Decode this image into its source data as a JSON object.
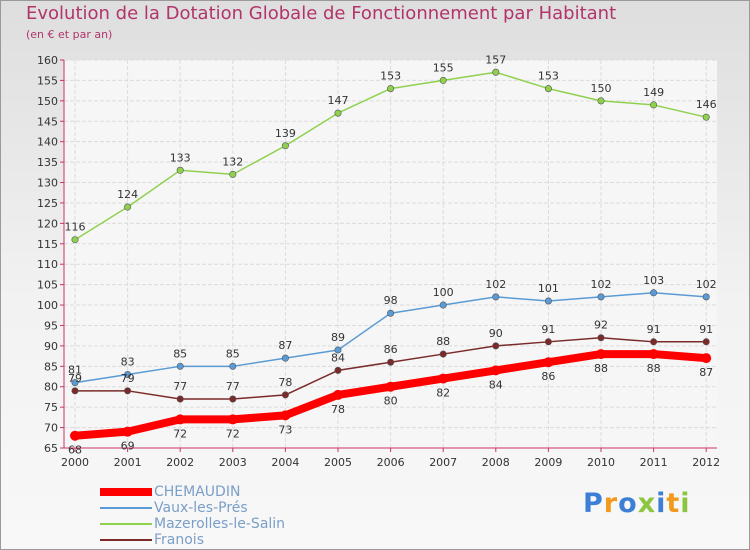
{
  "chart_data": {
    "type": "line",
    "title": "Evolution de la Dotation Globale de Fonctionnement par Habitant",
    "subtitle": "(en € et par an)",
    "categories": [
      "2000",
      "2001",
      "2002",
      "2003",
      "2004",
      "2005",
      "2006",
      "2007",
      "2008",
      "2009",
      "2010",
      "2011",
      "2012"
    ],
    "ylim": [
      65,
      160
    ],
    "ytick_step": 5,
    "grid": true,
    "legend_position": "bottom-left",
    "series": [
      {
        "name": "CHEMAUDIN",
        "color": "#ff0000",
        "values": [
          68,
          69,
          72,
          72,
          73,
          78,
          80,
          82,
          84,
          86,
          88,
          88,
          87
        ]
      },
      {
        "name": "Vaux-les-Prés",
        "color": "#5b9bd5",
        "values": [
          81,
          83,
          85,
          85,
          87,
          89,
          98,
          100,
          102,
          101,
          102,
          103,
          102
        ]
      },
      {
        "name": "Mazerolles-le-Salin",
        "color": "#8fd14f",
        "values": [
          116,
          124,
          133,
          132,
          139,
          147,
          153,
          155,
          157,
          153,
          150,
          149,
          146
        ]
      },
      {
        "name": "Franois",
        "color": "#7b2a2a",
        "values": [
          79,
          79,
          77,
          77,
          78,
          84,
          86,
          88,
          90,
          91,
          92,
          91,
          91
        ]
      }
    ]
  },
  "logo_text": "Proxiti",
  "logo_colors": [
    "#3d7fd6",
    "#f29a1d",
    "#3d7fd6",
    "#8cc63f",
    "#3d7fd6",
    "#f29a1d",
    "#8cc63f"
  ]
}
